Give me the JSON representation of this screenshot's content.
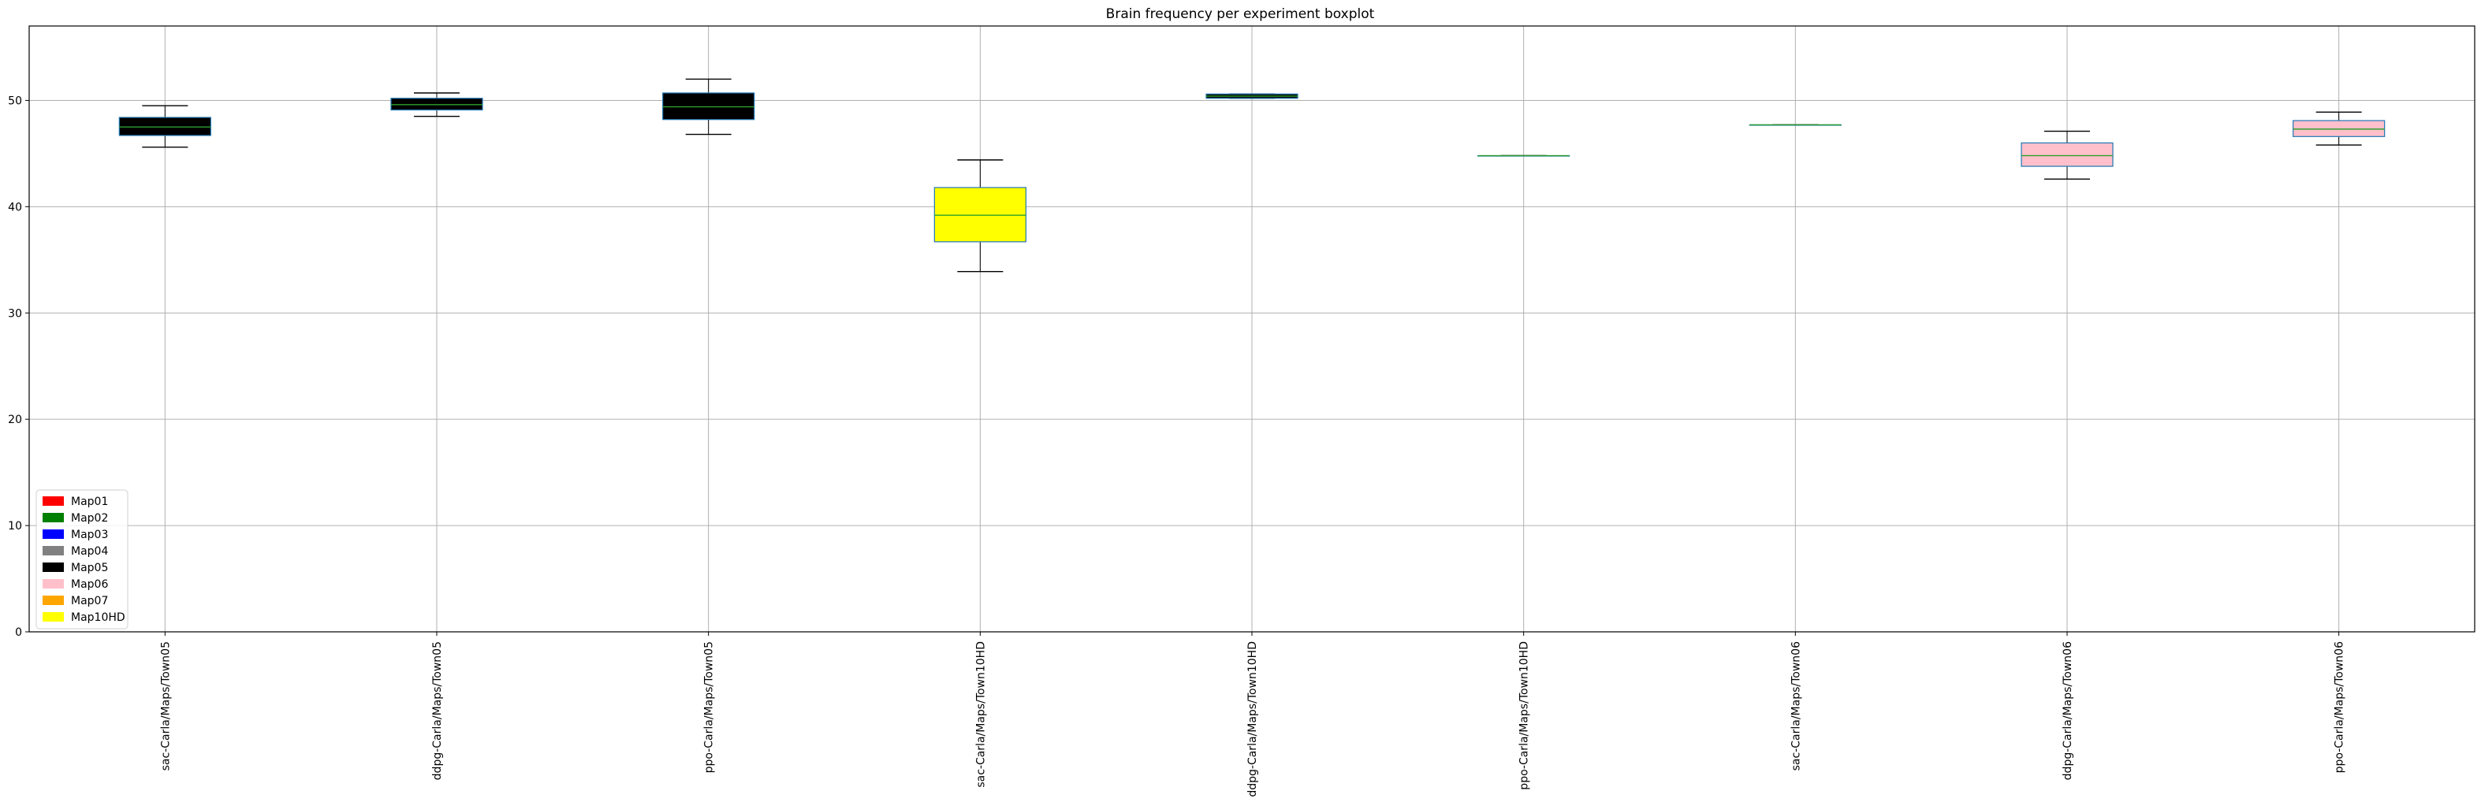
{
  "chart_data": {
    "type": "boxplot",
    "title": "Brain frequency per experiment boxplot",
    "xlabel": "",
    "ylabel": "",
    "ylim": [
      0,
      57
    ],
    "yticks": [
      0,
      10,
      20,
      30,
      40,
      50
    ],
    "grid": true,
    "legend_position": "lower-left",
    "categories": [
      "sac-Carla/Maps/Town05",
      "ddpg-Carla/Maps/Town05",
      "ppo-Carla/Maps/Town05",
      "sac-Carla/Maps/Town10HD",
      "ddpg-Carla/Maps/Town10HD",
      "ppo-Carla/Maps/Town10HD",
      "sac-Carla/Maps/Town06",
      "ddpg-Carla/Maps/Town06",
      "ppo-Carla/Maps/Town06"
    ],
    "boxes": [
      {
        "whislo": 45.6,
        "q1": 46.7,
        "med": 47.5,
        "q3": 48.4,
        "whishi": 49.5,
        "fill": "#000000"
      },
      {
        "whislo": 48.5,
        "q1": 49.1,
        "med": 49.6,
        "q3": 50.2,
        "whishi": 50.7,
        "fill": "#000000"
      },
      {
        "whislo": 46.8,
        "q1": 48.2,
        "med": 49.4,
        "q3": 50.7,
        "whishi": 52.0,
        "fill": "#000000"
      },
      {
        "whislo": 33.9,
        "q1": 36.7,
        "med": 39.2,
        "q3": 41.8,
        "whishi": 44.4,
        "fill": "#ffff00"
      },
      {
        "whislo": 50.2,
        "q1": 50.2,
        "med": 50.4,
        "q3": 50.6,
        "whishi": 50.6,
        "fill": "#000000"
      },
      {
        "whislo": 44.8,
        "q1": 44.8,
        "med": 44.8,
        "q3": 44.8,
        "whishi": 44.8,
        "fill": "#000000"
      },
      {
        "whislo": 47.7,
        "q1": 47.7,
        "med": 47.7,
        "q3": 47.7,
        "whishi": 47.7,
        "fill": "#000000"
      },
      {
        "whislo": 42.6,
        "q1": 43.8,
        "med": 44.8,
        "q3": 46.0,
        "whishi": 47.1,
        "fill": "#ffc0cb"
      },
      {
        "whislo": 45.8,
        "q1": 46.6,
        "med": 47.3,
        "q3": 48.1,
        "whishi": 48.9,
        "fill": "#ffc0cb"
      }
    ],
    "colors": {
      "box_edge": "#1f77b4",
      "median": "#2ca02c",
      "whisker": "#000000",
      "grid": "#b0b0b0"
    },
    "legend": [
      {
        "label": "Map01",
        "color": "#ff0000"
      },
      {
        "label": "Map02",
        "color": "#008000"
      },
      {
        "label": "Map03",
        "color": "#0000ff"
      },
      {
        "label": "Map04",
        "color": "#808080"
      },
      {
        "label": "Map05",
        "color": "#000000"
      },
      {
        "label": "Map06",
        "color": "#ffc0cb"
      },
      {
        "label": "Map07",
        "color": "#ffa500"
      },
      {
        "label": "Map10HD",
        "color": "#ffff00"
      }
    ]
  }
}
